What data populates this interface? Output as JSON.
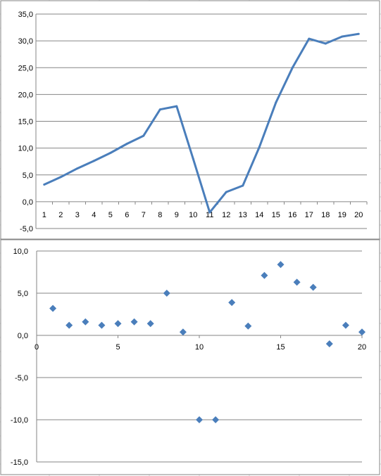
{
  "chart_data": [
    {
      "type": "line",
      "categories": [
        "1",
        "2",
        "3",
        "4",
        "5",
        "6",
        "7",
        "8",
        "9",
        "10",
        "11",
        "12",
        "13",
        "14",
        "15",
        "16",
        "17",
        "18",
        "19",
        "20"
      ],
      "series": [
        {
          "values": [
            3.2,
            4.6,
            6.2,
            7.6,
            9.1,
            10.8,
            12.3,
            17.2,
            17.8,
            8.0,
            -2.0,
            1.8,
            3.0,
            10.2,
            18.5,
            25.0,
            30.4,
            29.5,
            30.8,
            31.3
          ],
          "color": "#4a7ebb"
        }
      ],
      "ylim": [
        -5,
        35
      ],
      "yticks": [
        "-5,0",
        "0,0",
        "5,0",
        "10,0",
        "15,0",
        "20,0",
        "25,0",
        "30,0",
        "35,0"
      ],
      "grid": true,
      "title": "",
      "xlabel": "",
      "ylabel": ""
    },
    {
      "type": "scatter",
      "series": [
        {
          "x": [
            1,
            2,
            3,
            4,
            5,
            6,
            7,
            8,
            9,
            10,
            11,
            12,
            13,
            14,
            15,
            16,
            17,
            18,
            19,
            20
          ],
          "y": [
            3.2,
            1.2,
            1.6,
            1.2,
            1.4,
            1.6,
            1.4,
            5.0,
            0.4,
            -10.0,
            -10.0,
            3.9,
            1.1,
            7.1,
            8.4,
            6.3,
            5.7,
            -1.0,
            1.2,
            0.4
          ],
          "color": "#4a7ebb",
          "marker": "diamond"
        }
      ],
      "xlim": [
        0,
        20
      ],
      "ylim": [
        -15,
        10
      ],
      "xticks": [
        "0",
        "5",
        "10",
        "15",
        "20"
      ],
      "yticks": [
        "-15,0",
        "-10,0",
        "-5,0",
        "0,0",
        "5,0",
        "10,0"
      ],
      "negative_label_color": "#c00000",
      "grid": true,
      "title": "",
      "xlabel": "",
      "ylabel": ""
    }
  ]
}
